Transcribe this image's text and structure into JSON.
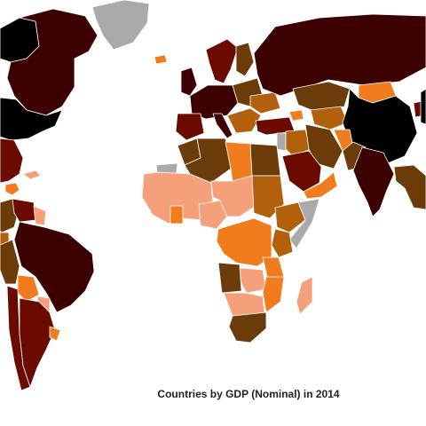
{
  "map": {
    "caption": "Countries by GDP (Nominal) in 2014",
    "palette": {
      "very_high": "#000000",
      "high": "#3d0000",
      "upper_mid": "#6b0a00",
      "mid": "#6b3c0a",
      "lower_mid": "#b3600d",
      "low": "#f07c1e",
      "very_low": "#f5a07a",
      "no_data": "#aaaaaa",
      "ocean": "#ffffff"
    },
    "regions": [
      {
        "name": "canada",
        "class": "high"
      },
      {
        "name": "greenland",
        "class": "no_data"
      },
      {
        "name": "united-states",
        "class": "very_high"
      },
      {
        "name": "alaska",
        "class": "very_high"
      },
      {
        "name": "mexico",
        "class": "upper_mid"
      },
      {
        "name": "central-america",
        "class": "low"
      },
      {
        "name": "caribbean",
        "class": "very_low"
      },
      {
        "name": "colombia",
        "class": "mid"
      },
      {
        "name": "venezuela",
        "class": "upper_mid"
      },
      {
        "name": "guyanas",
        "class": "very_low"
      },
      {
        "name": "ecuador",
        "class": "lower_mid"
      },
      {
        "name": "peru",
        "class": "mid"
      },
      {
        "name": "brazil",
        "class": "high"
      },
      {
        "name": "bolivia",
        "class": "low"
      },
      {
        "name": "paraguay",
        "class": "very_low"
      },
      {
        "name": "uruguay",
        "class": "low"
      },
      {
        "name": "chile",
        "class": "upper_mid"
      },
      {
        "name": "argentina",
        "class": "upper_mid"
      },
      {
        "name": "iceland",
        "class": "low"
      },
      {
        "name": "uk-ireland",
        "class": "high"
      },
      {
        "name": "scandinavia",
        "class": "upper_mid"
      },
      {
        "name": "finland",
        "class": "mid"
      },
      {
        "name": "western-europe",
        "class": "high"
      },
      {
        "name": "iberia",
        "class": "upper_mid"
      },
      {
        "name": "italy",
        "class": "high"
      },
      {
        "name": "eastern-europe",
        "class": "mid"
      },
      {
        "name": "balkans",
        "class": "lower_mid"
      },
      {
        "name": "ukraine",
        "class": "lower_mid"
      },
      {
        "name": "turkey",
        "class": "upper_mid"
      },
      {
        "name": "russia",
        "class": "high"
      },
      {
        "name": "kazakhstan",
        "class": "mid"
      },
      {
        "name": "central-asia",
        "class": "lower_mid"
      },
      {
        "name": "mongolia",
        "class": "low"
      },
      {
        "name": "china",
        "class": "very_high"
      },
      {
        "name": "japan",
        "class": "very_high"
      },
      {
        "name": "korea",
        "class": "upper_mid"
      },
      {
        "name": "india",
        "class": "high"
      },
      {
        "name": "pakistan",
        "class": "mid"
      },
      {
        "name": "afghanistan",
        "class": "low"
      },
      {
        "name": "iran",
        "class": "mid"
      },
      {
        "name": "iraq-syria",
        "class": "lower_mid"
      },
      {
        "name": "saudi-arabia",
        "class": "upper_mid"
      },
      {
        "name": "yemen-oman",
        "class": "low"
      },
      {
        "name": "caucasus",
        "class": "low"
      },
      {
        "name": "levant",
        "class": "no_data"
      },
      {
        "name": "southeast-asia",
        "class": "mid"
      },
      {
        "name": "morocco",
        "class": "mid"
      },
      {
        "name": "western-sahara",
        "class": "no_data"
      },
      {
        "name": "algeria",
        "class": "mid"
      },
      {
        "name": "libya",
        "class": "low"
      },
      {
        "name": "egypt",
        "class": "mid"
      },
      {
        "name": "sudan",
        "class": "lower_mid"
      },
      {
        "name": "west-africa",
        "class": "very_low"
      },
      {
        "name": "ghana",
        "class": "low"
      },
      {
        "name": "nigeria",
        "class": "very_low"
      },
      {
        "name": "chad-niger",
        "class": "very_low"
      },
      {
        "name": "ethiopia",
        "class": "lower_mid"
      },
      {
        "name": "somalia",
        "class": "no_data"
      },
      {
        "name": "kenya",
        "class": "lower_mid"
      },
      {
        "name": "congo-basin",
        "class": "low"
      },
      {
        "name": "angola",
        "class": "mid"
      },
      {
        "name": "tanzania",
        "class": "low"
      },
      {
        "name": "mozambique",
        "class": "low"
      },
      {
        "name": "zambia",
        "class": "very_low"
      },
      {
        "name": "namibia-botswana",
        "class": "very_low"
      },
      {
        "name": "south-africa",
        "class": "mid"
      },
      {
        "name": "madagascar",
        "class": "very_low"
      }
    ]
  }
}
